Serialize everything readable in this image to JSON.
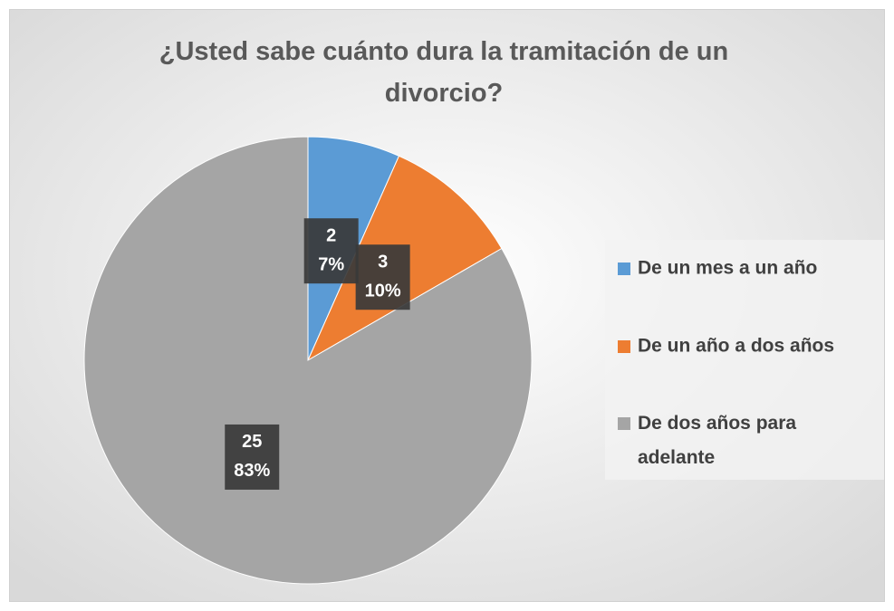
{
  "chart_data": {
    "type": "pie",
    "title": "¿Usted sabe cuánto dura la tramitación de un divorcio?",
    "categories": [
      "De un mes a un año",
      "De un año a dos años",
      "De dos años para adelante"
    ],
    "values": [
      2,
      3,
      25
    ],
    "percentage_labels": [
      "7%",
      "10%",
      "83%"
    ],
    "colors": [
      "#5b9bd5",
      "#ed7d31",
      "#a5a5a5"
    ],
    "legend": "right"
  }
}
